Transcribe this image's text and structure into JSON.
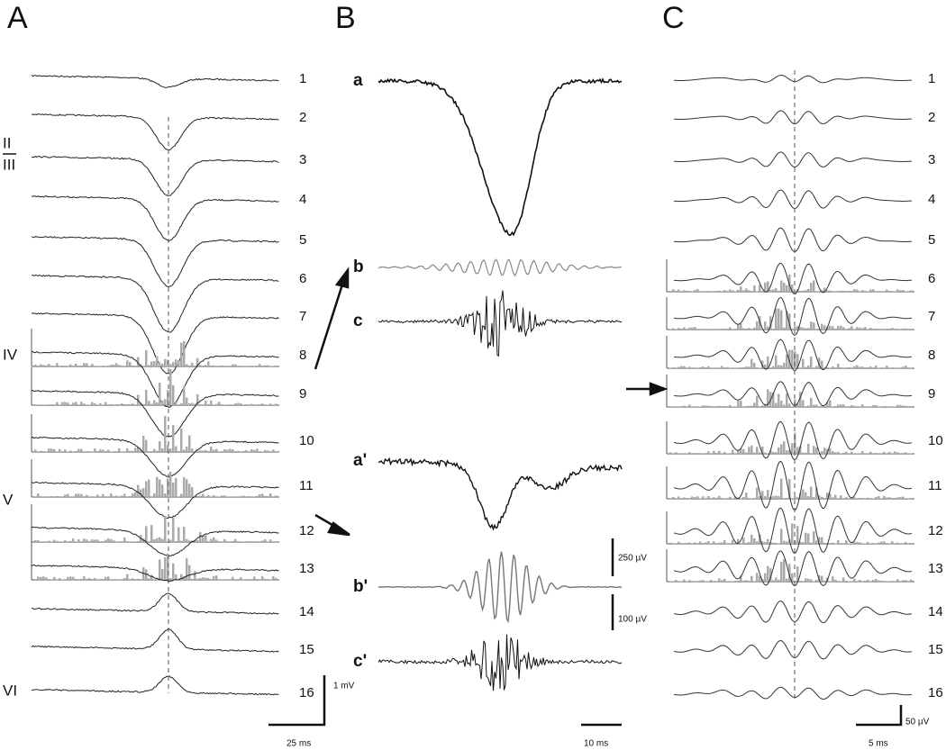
{
  "panels": [
    {
      "label": "A",
      "channels": [
        1,
        2,
        3,
        4,
        5,
        6,
        7,
        8,
        9,
        10,
        11,
        12,
        13,
        14,
        15,
        16
      ],
      "layers": [
        "II",
        "III",
        "IV",
        "V",
        "VI"
      ],
      "scale": {
        "y": "1 mV",
        "x": "25 ms"
      }
    },
    {
      "label": "B",
      "traces": [
        "a",
        "b",
        "c",
        "a'",
        "b'",
        "c'"
      ],
      "scale": {
        "y1": "250 µV",
        "y2": "100 µV",
        "x": "10 ms"
      }
    },
    {
      "label": "C",
      "channels": [
        1,
        2,
        3,
        4,
        5,
        6,
        7,
        8,
        9,
        10,
        11,
        12,
        13,
        14,
        15,
        16
      ],
      "scale": {
        "y": "50 µV",
        "x": "5 ms"
      }
    }
  ]
}
